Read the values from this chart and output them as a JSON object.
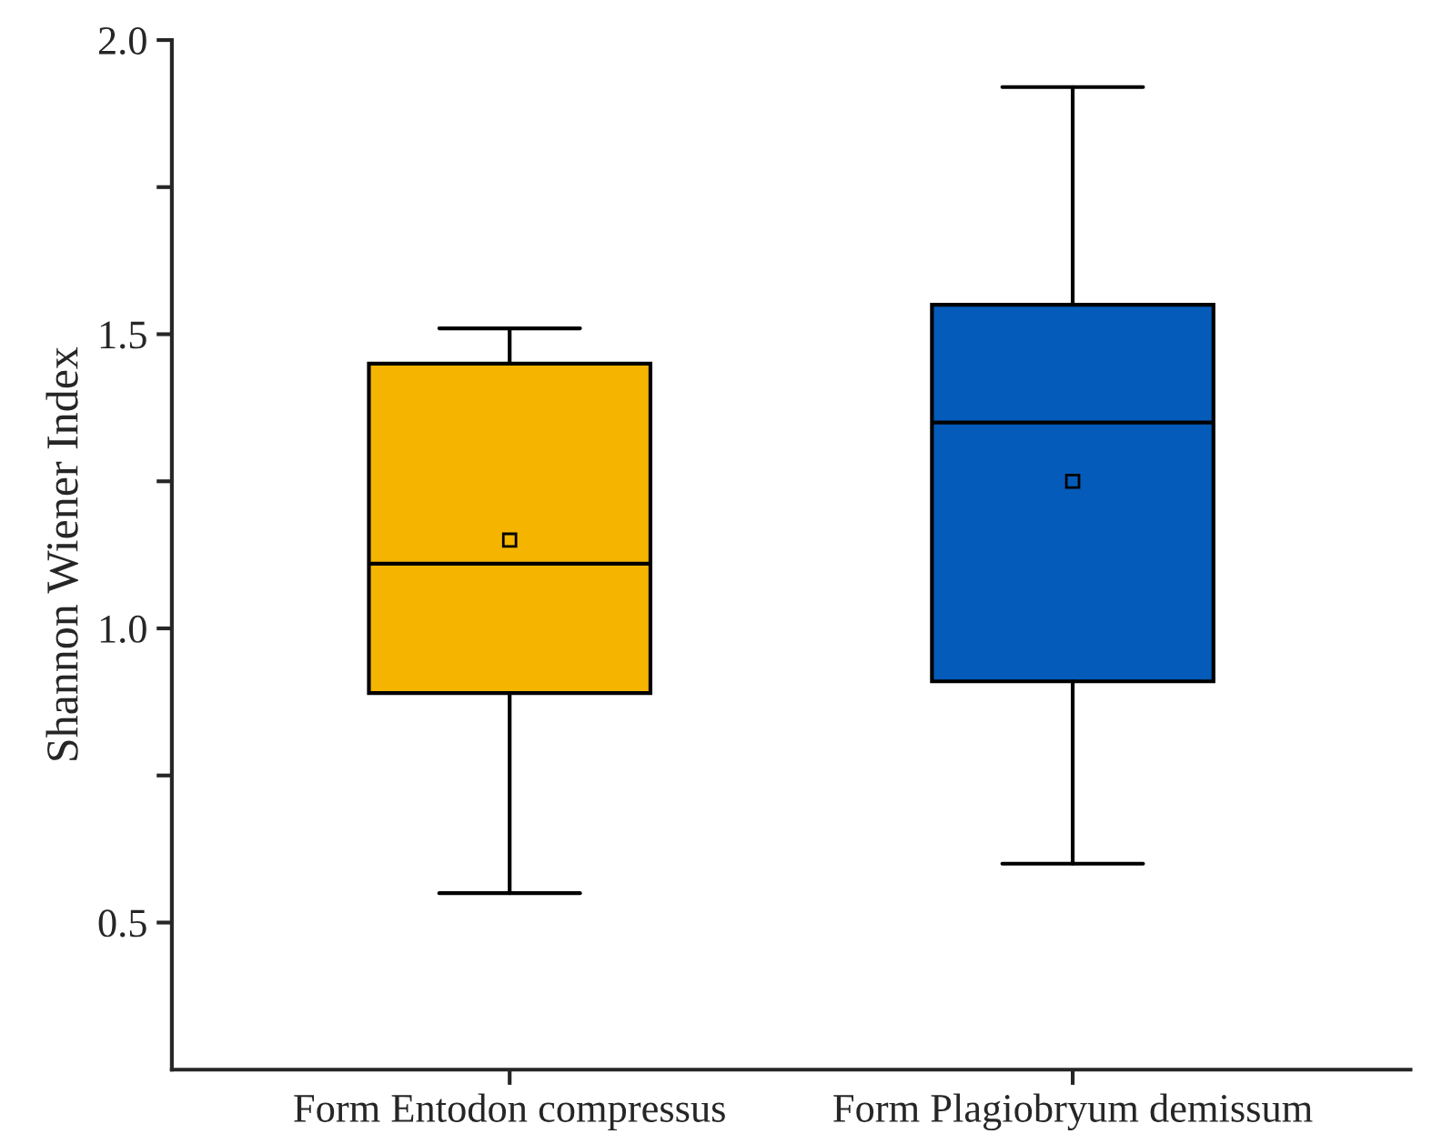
{
  "chart_data": {
    "type": "box",
    "ylabel": "Shannon Wiener Index",
    "categories": [
      "Form Entodon compressus",
      "Form Plagiobryum demissum"
    ],
    "colors": [
      "#f5b400",
      "#045bb9"
    ],
    "boxes": [
      {
        "low": 0.55,
        "q1": 0.89,
        "median": 1.11,
        "q3": 1.45,
        "high": 1.51,
        "mean": 1.15
      },
      {
        "low": 0.6,
        "q1": 0.91,
        "median": 1.35,
        "q3": 1.55,
        "high": 1.92,
        "mean": 1.25
      }
    ],
    "ylim": [
      0.25,
      2.0
    ],
    "yticks": [
      {
        "value": 0.5,
        "label": "0.5"
      },
      {
        "value": 0.75,
        "label": null
      },
      {
        "value": 1.0,
        "label": "1.0"
      },
      {
        "value": 1.25,
        "label": null
      },
      {
        "value": 1.5,
        "label": "1.5"
      },
      {
        "value": 1.75,
        "label": null
      },
      {
        "value": 2.0,
        "label": "2.0"
      }
    ],
    "grid": false
  }
}
